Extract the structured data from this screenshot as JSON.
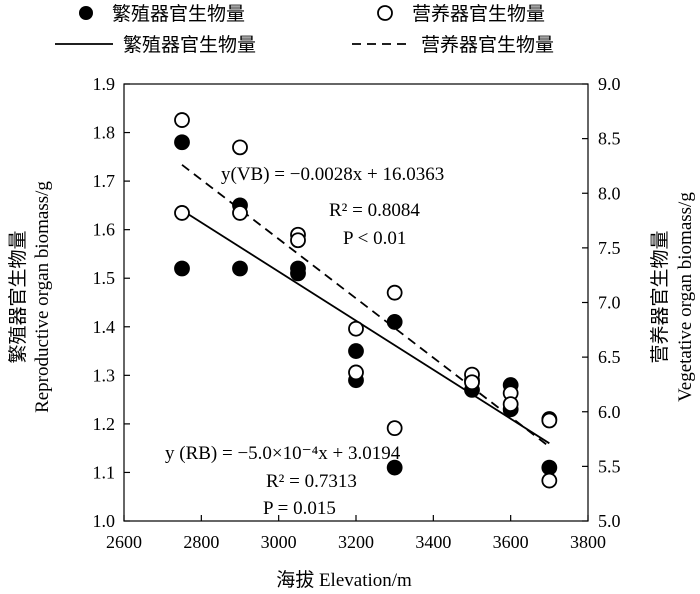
{
  "chart_data": {
    "type": "scatter",
    "legend": {
      "position": "top",
      "items": [
        {
          "label": "繁殖器官生物量",
          "marker": "filled-circle"
        },
        {
          "label": "营养器官生物量",
          "marker": "open-circle"
        },
        {
          "label": "繁殖器官生物量",
          "marker": "solid-line"
        },
        {
          "label": "营养器官生物量",
          "marker": "dashed-line"
        }
      ]
    },
    "xlabel": "海拔 Elevation/m",
    "ylabel_left": [
      "繁殖器官生物量",
      "Reproductive organ biomass/g"
    ],
    "ylabel_right": [
      "营养器官生物量",
      "Vegetative organ biomass/g"
    ],
    "x_ticks": [
      "2600",
      "2800",
      "3000",
      "3200",
      "3400",
      "3600",
      "3800"
    ],
    "yl_ticks": [
      "1.0",
      "1.1",
      "1.2",
      "1.3",
      "1.4",
      "1.5",
      "1.6",
      "1.7",
      "1.8",
      "1.9"
    ],
    "yr_ticks": [
      "5.0",
      "5.5",
      "6.0",
      "6.5",
      "7.0",
      "7.5",
      "8.0",
      "8.5",
      "9.0"
    ],
    "xlim": [
      2600,
      3800
    ],
    "ylim_left": [
      1.0,
      1.9
    ],
    "ylim_right": [
      5.0,
      9.0
    ],
    "grid": false,
    "series": [
      {
        "name": "繁殖器官生物量",
        "axis": "left",
        "marker": "filled",
        "x": [
          2750,
          2750,
          2900,
          2900,
          3050,
          3050,
          3200,
          3200,
          3300,
          3300,
          3500,
          3500,
          3600,
          3600,
          3700,
          3700
        ],
        "y": [
          1.78,
          1.52,
          1.65,
          1.52,
          1.52,
          1.51,
          1.35,
          1.29,
          1.41,
          1.11,
          1.29,
          1.27,
          1.28,
          1.23,
          1.21,
          1.11
        ]
      },
      {
        "name": "营养器官生物量",
        "axis": "right",
        "marker": "open",
        "x": [
          2750,
          2750,
          2900,
          2900,
          3050,
          3050,
          3200,
          3200,
          3300,
          3300,
          3500,
          3500,
          3600,
          3600,
          3700,
          3700
        ],
        "y": [
          8.67,
          7.82,
          8.42,
          7.82,
          7.62,
          7.57,
          6.76,
          6.36,
          7.09,
          5.85,
          6.34,
          6.27,
          6.17,
          6.07,
          5.92,
          5.37
        ]
      }
    ],
    "fits": [
      {
        "name": "繁殖器官生物量",
        "axis": "left",
        "style": "solid",
        "x": [
          2750,
          3700
        ],
        "y": [
          1.64,
          1.16
        ]
      },
      {
        "name": "营养器官生物量",
        "axis": "right",
        "style": "dashed",
        "x": [
          2750,
          3700
        ],
        "y": [
          8.26,
          5.68
        ]
      }
    ],
    "annotations": {
      "vb": {
        "l1": "y(VB) = −0.0028x + 16.0363",
        "l2": "R² = 0.8084",
        "l3": "P < 0.01"
      },
      "rb": {
        "l1": "y (RB) = −5.0×10⁻⁴x + 3.0194",
        "l2": "R² = 0.7313",
        "l3": "P = 0.015"
      }
    }
  }
}
